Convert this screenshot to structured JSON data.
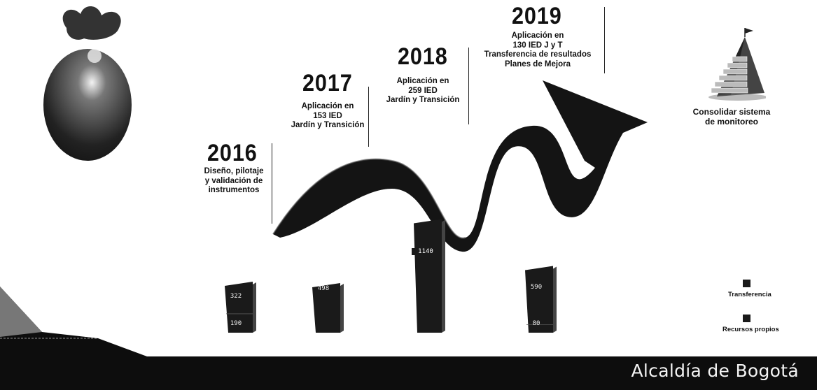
{
  "footer": {
    "brand": "Alcaldía de Bogotá"
  },
  "monitor_caption": [
    "Consolidar sistema",
    "de monitoreo"
  ],
  "milestones": [
    {
      "year": "2016",
      "lines": [
        "Diseño, pilotaje",
        "y validación de",
        "instrumentos"
      ]
    },
    {
      "year": "2017",
      "lines": [
        "Aplicación en",
        "153  IED",
        "Jardín y Transición"
      ]
    },
    {
      "year": "2018",
      "lines": [
        "Aplicación en",
        "259 IED",
        "Jardín y Transición"
      ]
    },
    {
      "year": "2019",
      "lines": [
        "Aplicación en",
        "130 IED J y T",
        "Transferencia de resultados",
        "Planes de Mejora"
      ]
    }
  ],
  "chart_data": {
    "type": "bar",
    "categories": [
      "2016",
      "2017",
      "2018",
      "2019"
    ],
    "series": [
      {
        "name": "Transferencia",
        "values": [
          322,
          498,
          1140,
          590
        ]
      },
      {
        "name": "Recursos propios",
        "values": [
          190,
          null,
          null,
          80
        ]
      }
    ],
    "legend": [
      "Transferencia",
      "Recursos propios"
    ],
    "legend_position": "right",
    "colors": {
      "bar": "#1a1a1a",
      "arrow": "#111111"
    }
  }
}
